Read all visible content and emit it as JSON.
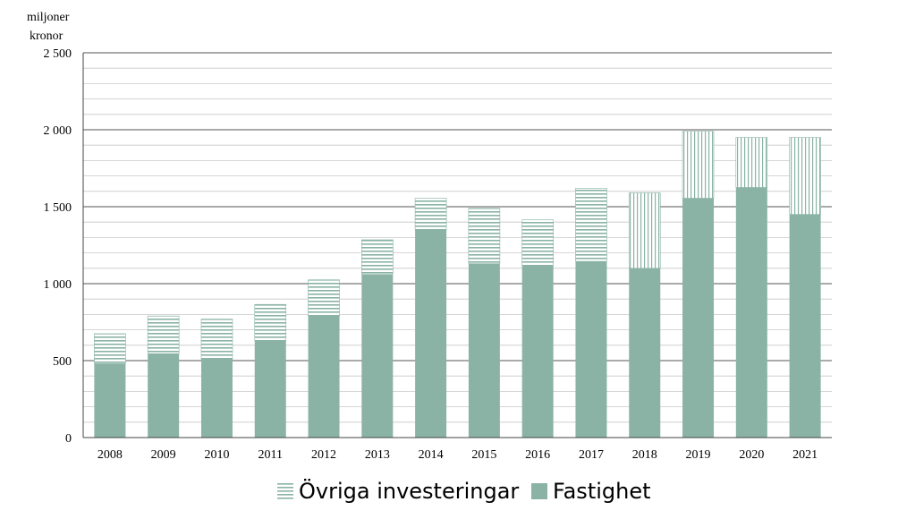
{
  "chart_data": {
    "type": "bar",
    "stacked": true,
    "title": "",
    "xlabel": "",
    "ylabel_lines": [
      "miljoner",
      "kronor"
    ],
    "ylim": [
      0,
      2500
    ],
    "yticks": [
      0,
      500,
      1000,
      1500,
      2000,
      2500
    ],
    "ytick_labels": [
      "0",
      "500",
      "1 000",
      "1 500",
      "2 000",
      "2 500"
    ],
    "minor_grid_step": 100,
    "categories": [
      "2008",
      "2009",
      "2010",
      "2011",
      "2012",
      "2013",
      "2014",
      "2015",
      "2016",
      "2017",
      "2018",
      "2019",
      "2020",
      "2021"
    ],
    "series": [
      {
        "name": "Fastighet",
        "color": "#8ab3a5",
        "pattern": "solid",
        "values": [
          480,
          545,
          510,
          630,
          790,
          1060,
          1350,
          1130,
          1120,
          1145,
          1100,
          1555,
          1625,
          1450
        ]
      },
      {
        "name": "Övriga investeringar",
        "color": "#8ab3a5",
        "pattern": "hatch",
        "values": [
          195,
          245,
          260,
          235,
          235,
          225,
          205,
          360,
          295,
          475,
          490,
          435,
          325,
          500
        ]
      }
    ],
    "legend": {
      "placement": "bottom",
      "items": [
        "Övriga investeringar",
        "Fastighet"
      ]
    },
    "grid": true
  }
}
